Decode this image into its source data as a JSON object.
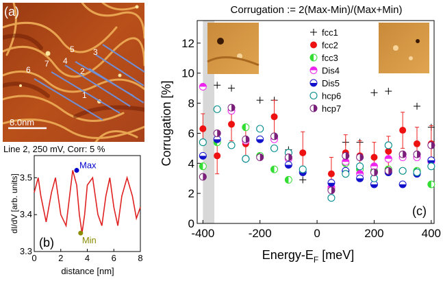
{
  "panel_a": {
    "label": "(a)",
    "scale_bar": "8.0nm",
    "line_labels": [
      "1",
      "2",
      "3",
      "4",
      "5",
      "6",
      "7"
    ]
  },
  "colors": {
    "stm_dark": "#7a2208",
    "stm_bright": "#f0b35a",
    "profile_line": "#e02020",
    "scan_line": "#6f8fd6",
    "max_marker": "#0000cc",
    "min_marker": "#8b8b00",
    "fcc2": "#ee1111",
    "fcc3": "#33dd33",
    "dis4": "#ee22ee",
    "dis5": "#1111cc",
    "hcp6": "#008c8c",
    "hcp7": "#7a1f7a",
    "error_bar": "#ee2222",
    "shaded_band": "#d8d8d8"
  },
  "chart_data": [
    {
      "type": "line",
      "panel": "(b)",
      "title": "Line 2, 250 mV, Corr: 5 %",
      "xlabel": "distance [nm]",
      "ylabel": "dI/dV [arb. units]",
      "xlim": [
        0,
        8
      ],
      "ylim": [
        3.3,
        3.56
      ],
      "xticks": [
        "0",
        "2",
        "4",
        "6",
        "8"
      ],
      "yticks": [
        "3.3",
        "3.4",
        "3.5"
      ],
      "x": [
        0.0,
        0.3,
        0.5,
        0.9,
        1.3,
        1.6,
        2.0,
        2.4,
        2.7,
        2.9,
        3.2,
        3.4,
        3.6,
        3.8,
        4.0,
        4.4,
        4.8,
        5.1,
        5.4,
        5.7,
        6.0,
        6.3,
        6.6,
        7.0,
        7.4,
        7.7,
        8.0
      ],
      "y": [
        3.46,
        3.5,
        3.45,
        3.38,
        3.46,
        3.5,
        3.4,
        3.37,
        3.46,
        3.52,
        3.48,
        3.4,
        3.35,
        3.4,
        3.48,
        3.5,
        3.4,
        3.37,
        3.45,
        3.5,
        3.42,
        3.37,
        3.45,
        3.5,
        3.45,
        3.39,
        3.42
      ],
      "annotations": [
        {
          "text": "Max",
          "x": 3.2,
          "y": 3.52
        },
        {
          "text": "Min",
          "x": 3.5,
          "y": 3.35
        }
      ]
    },
    {
      "type": "scatter",
      "panel": "(c)",
      "title": "Corrugation := 2(Max-Min)/(Max+Min)",
      "xlabel": "Energy-E",
      "xlabel_sub": "F",
      "xlabel_unit": " [meV]",
      "ylabel": "Corrugation [%]",
      "xlim": [
        -420,
        410
      ],
      "ylim": [
        0,
        13.5
      ],
      "xticks": [
        -400,
        -200,
        0,
        200,
        400
      ],
      "xtick_labels": [
        "-400",
        "-200",
        "0",
        "200",
        "400"
      ],
      "yticks": [
        0,
        2,
        4,
        6,
        8,
        10,
        12
      ],
      "yticks_labels": [
        "0",
        "2",
        "4",
        "6",
        "8",
        "10",
        "12"
      ],
      "shaded_band": [
        -400,
        -360
      ],
      "series": [
        {
          "name": "fcc1",
          "marker": "plus",
          "x": [
            -350,
            -300,
            -200,
            -150,
            -100,
            -50,
            50,
            100,
            150,
            200,
            250,
            350,
            400
          ],
          "y": [
            9.2,
            9.0,
            8.2,
            8.2,
            4.9,
            2.9,
            2.2,
            5.4,
            5.4,
            8.7,
            8.8,
            7.8,
            6.4
          ]
        },
        {
          "name": "fcc2",
          "marker": "filled",
          "x": [
            -400,
            -350,
            -300,
            -250,
            -150,
            -50,
            50,
            100,
            150,
            200,
            250,
            300,
            350,
            400
          ],
          "y": [
            6.3,
            4.5,
            6.6,
            5.3,
            7.1,
            4.7,
            3.3,
            4.7,
            4.5,
            4.4,
            4.8,
            6.2,
            5.3,
            5.3
          ],
          "err": [
            1.0,
            1.2,
            1.1,
            1.0,
            1.1,
            1.4,
            1.1,
            1.2,
            1.0,
            1.0,
            1.0,
            1.2,
            1.1,
            1.2
          ]
        },
        {
          "name": "fcc3",
          "marker": "half-left",
          "x": [
            -400,
            -350,
            -250,
            -200,
            -150,
            -100,
            50,
            100,
            150,
            200,
            250,
            300,
            350,
            400
          ],
          "y": [
            3.8,
            5.4,
            6.4,
            4.5,
            3.6,
            2.9,
            2.3,
            4.0,
            3.6,
            3.5,
            3.6,
            3.5,
            3.5,
            2.6
          ]
        },
        {
          "name": "Dis4",
          "marker": "half-top",
          "x": [
            -400,
            -300,
            -250,
            -150,
            -100,
            50,
            100,
            150,
            200,
            250,
            300,
            350,
            400
          ],
          "y": [
            9.1,
            7.5,
            5.5,
            5.6,
            4.3,
            2.4,
            4.1,
            3.3,
            3.8,
            4.3,
            4.4,
            4.4,
            4.1
          ]
        },
        {
          "name": "Dis5",
          "marker": "half-bottom",
          "x": [
            -400,
            -350,
            -250,
            -200,
            -100,
            -50,
            50,
            100,
            150,
            200,
            250,
            300,
            350,
            400
          ],
          "y": [
            4.5,
            5.6,
            4.3,
            5.6,
            3.9,
            3.4,
            2.7,
            3.5,
            3.0,
            2.6,
            3.4,
            2.6,
            3.3,
            4.2
          ]
        },
        {
          "name": "hcp6",
          "marker": "open",
          "x": [
            -400,
            -350,
            -300,
            -250,
            -200,
            -150,
            -100,
            -50,
            50,
            100,
            150,
            200,
            250,
            300,
            350,
            400
          ],
          "y": [
            5.4,
            7.6,
            5.2,
            4.3,
            6.3,
            5.0,
            4.7,
            3.6,
            1.7,
            3.3,
            3.8,
            3.0,
            5.2,
            3.5,
            3.4,
            3.8
          ]
        },
        {
          "name": "hcp7",
          "marker": "half-right",
          "x": [
            -400,
            -350,
            -300,
            -250,
            -200,
            -150,
            -100,
            50,
            100,
            150,
            200,
            250,
            300,
            350,
            400
          ],
          "y": [
            3.1,
            6.0,
            7.7,
            5.6,
            4.4,
            5.8,
            4.4,
            2.2,
            4.5,
            4.4,
            3.4,
            3.5,
            4.6,
            4.6,
            5.2
          ]
        }
      ],
      "panel_label": "(c)"
    }
  ]
}
